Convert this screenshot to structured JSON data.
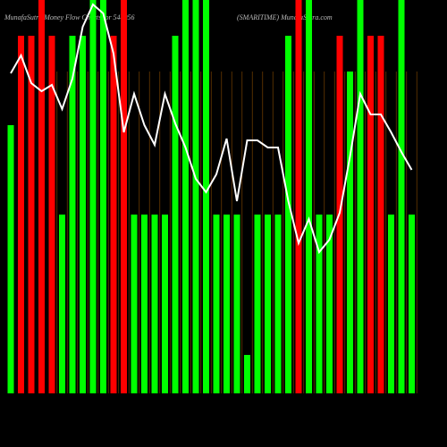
{
  "chart_data": {
    "type": "bar",
    "title": "MunafaSutra  Money Flow Charts for 544056",
    "subtitle": "(SMARITIME) MunafaSutra.com",
    "categories": [
      null,
      null,
      null,
      null,
      null,
      null,
      null,
      null,
      null,
      null,
      null,
      null,
      null,
      null,
      null,
      null,
      null,
      null,
      null,
      null,
      null,
      null,
      null,
      null,
      null,
      null,
      null,
      null,
      null,
      null,
      null,
      null,
      null,
      null,
      null,
      null,
      null,
      null,
      null,
      null
    ],
    "values": [
      300,
      400,
      400,
      440,
      400,
      200,
      400,
      400,
      440,
      440,
      400,
      440,
      200,
      200,
      200,
      200,
      400,
      440,
      440,
      440,
      200,
      200,
      200,
      43,
      200,
      200,
      200,
      400,
      440,
      440,
      200,
      200,
      400,
      360,
      440,
      400,
      400,
      200,
      440,
      200
    ],
    "colors": [
      "#00ff00",
      "#ff0000",
      "#ff0000",
      "#ff0000",
      "#ff0000",
      "#00ff00",
      "#00ff00",
      "#00ff00",
      "#00ff00",
      "#00ff00",
      "#ff0000",
      "#ff0000",
      "#00ff00",
      "#00ff00",
      "#00ff00",
      "#00ff00",
      "#00ff00",
      "#00ff00",
      "#00ff00",
      "#00ff00",
      "#00ff00",
      "#00ff00",
      "#00ff00",
      "#00ff00",
      "#00ff00",
      "#00ff00",
      "#00ff00",
      "#00ff00",
      "#ff0000",
      "#00ff00",
      "#00ff00",
      "#00ff00",
      "#ff0000",
      "#00ff00",
      "#00ff00",
      "#ff0000",
      "#ff0000",
      "#00ff00",
      "#00ff00",
      "#00ff00"
    ],
    "ylim": [
      0,
      440
    ],
    "line": {
      "color": "#ffffff",
      "axis": "y2",
      "values": [
        358,
        378,
        347,
        338,
        345,
        318,
        352,
        410,
        435,
        425,
        380,
        292,
        335,
        300,
        278,
        335,
        302,
        275,
        240,
        225,
        245,
        285,
        215,
        283,
        283,
        275,
        275,
        215,
        168,
        195,
        158,
        172,
        202,
        265,
        335,
        312,
        312,
        292,
        270,
        250
      ]
    },
    "y2lim": [
      0,
      440
    ]
  }
}
